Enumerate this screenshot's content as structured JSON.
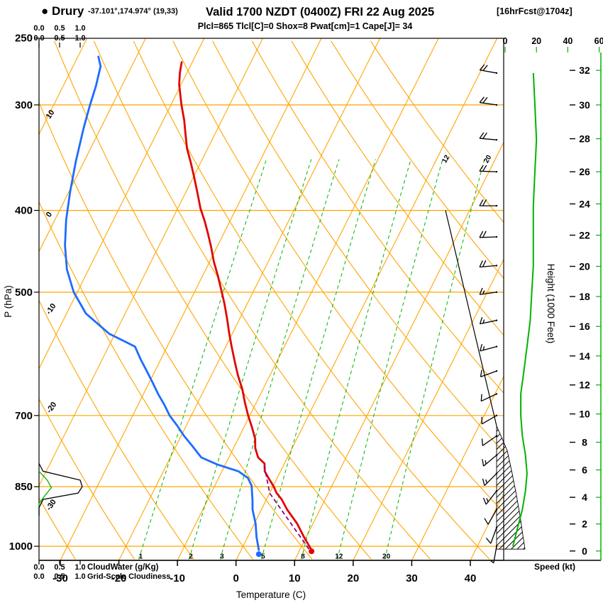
{
  "header": {
    "station_full": "● Drury",
    "coords": "-37.101°,174.974° (19,33)",
    "valid": "Valid 1700 NZDT (0400Z) FRI 22 Aug 2025",
    "fcst": "[16hrFcst@1704z]",
    "indices": "Plcl=865 Tlcl[C]=0 Shox=8 Pwat[cm]=1 Cape[J]= 34"
  },
  "axes": {
    "pressure": {
      "label": "P (hPa)",
      "ticks": [
        250,
        300,
        400,
        500,
        700,
        850,
        1000
      ]
    },
    "temperature": {
      "label": "Temperature (C)",
      "ticks": [
        -30,
        -20,
        -10,
        0,
        10,
        20,
        30,
        40
      ]
    },
    "height": {
      "label": "Height (1000 Feet)",
      "ticks": [
        32,
        30,
        28,
        26,
        24,
        22,
        20,
        18,
        16,
        14,
        12,
        10,
        8,
        6,
        4,
        2,
        0
      ]
    },
    "speed": {
      "label": "Speed (kt)",
      "ticks": [
        0,
        20,
        40,
        60
      ]
    },
    "cloudwater": {
      "label": "CloudWater (g/Kg)",
      "ticks": [
        "0.0",
        "0.5",
        "1.0"
      ]
    },
    "cloudiness": {
      "label": "Grid-Scale Cloudiness",
      "ticks": [
        "0.0",
        "0.5",
        "1.0"
      ]
    }
  },
  "grid": {
    "isotherms_c": [
      -70,
      -60,
      -50,
      -40,
      -30,
      -20,
      -10,
      0,
      10,
      20,
      30,
      40
    ],
    "dry_adiabats_c": [
      -40,
      -30,
      -20,
      -10,
      0,
      10,
      20,
      30,
      40,
      50,
      60,
      70,
      80,
      90,
      100
    ],
    "adiabat_left_labels": [
      10,
      0,
      -10,
      -20,
      -30
    ],
    "mixing_ratio_gkg": [
      1,
      2,
      3,
      5,
      8,
      12,
      20
    ],
    "mixing_top_labels": [
      12,
      20
    ]
  },
  "chart_data": {
    "type": "skewt_log_p_sounding",
    "title": "Drury forecast sounding valid 1700 NZDT FRI 22 Aug 2025",
    "pressure_range_hpa": [
      250,
      1040
    ],
    "temperature_range_c": [
      -30,
      40
    ],
    "temperature_c": [
      [
        1010,
        12
      ],
      [
        975,
        9.6
      ],
      [
        940,
        7.3
      ],
      [
        905,
        4.4
      ],
      [
        880,
        2.6
      ],
      [
        865,
        1.2
      ],
      [
        848,
        0
      ],
      [
        830,
        -1.5
      ],
      [
        815,
        -2.7
      ],
      [
        810,
        -2.9
      ],
      [
        798,
        -3.4
      ],
      [
        785,
        -5.0
      ],
      [
        765,
        -6.3
      ],
      [
        746,
        -7.1
      ],
      [
        722,
        -8.7
      ],
      [
        700,
        -10.3
      ],
      [
        675,
        -12
      ],
      [
        652,
        -13.5
      ],
      [
        627,
        -15.5
      ],
      [
        604,
        -17.2
      ],
      [
        580,
        -19
      ],
      [
        560,
        -20.5
      ],
      [
        537,
        -22.2
      ],
      [
        517,
        -23.8
      ],
      [
        497,
        -25.6
      ],
      [
        478,
        -27.4
      ],
      [
        460,
        -29.3
      ],
      [
        442,
        -31
      ],
      [
        426,
        -32.7
      ],
      [
        412,
        -34.3
      ],
      [
        398,
        -36.1
      ],
      [
        381,
        -38
      ],
      [
        365,
        -39.9
      ],
      [
        351,
        -41.7
      ],
      [
        338,
        -43.5
      ],
      [
        325,
        -45
      ],
      [
        313,
        -46.4
      ],
      [
        300,
        -48.2
      ],
      [
        284,
        -50.3
      ],
      [
        275,
        -51.2
      ],
      [
        267,
        -51.8
      ]
    ],
    "dewpoint_c": [
      [
        1010,
        3
      ],
      [
        975,
        1.5
      ],
      [
        940,
        0.2
      ],
      [
        905,
        -1.5
      ],
      [
        880,
        -2.4
      ],
      [
        865,
        -3
      ],
      [
        848,
        -3.7
      ],
      [
        830,
        -5
      ],
      [
        815,
        -7.2
      ],
      [
        800,
        -11.4
      ],
      [
        785,
        -14.7
      ],
      [
        760,
        -17.3
      ],
      [
        740,
        -19.5
      ],
      [
        720,
        -21.5
      ],
      [
        700,
        -23.7
      ],
      [
        680,
        -25.5
      ],
      [
        660,
        -27.5
      ],
      [
        640,
        -29.4
      ],
      [
        620,
        -31.4
      ],
      [
        600,
        -33.5
      ],
      [
        580,
        -35.5
      ],
      [
        560,
        -41
      ],
      [
        530,
        -46.7
      ],
      [
        500,
        -50.6
      ],
      [
        470,
        -53.7
      ],
      [
        440,
        -56.1
      ],
      [
        410,
        -58.1
      ],
      [
        380,
        -59.8
      ],
      [
        350,
        -61.4
      ],
      [
        320,
        -62.9
      ],
      [
        300,
        -63.8
      ],
      [
        285,
        -64.4
      ],
      [
        270,
        -65.3
      ],
      [
        263,
        -66.5
      ]
    ],
    "parcel_c": [
      [
        1008,
        11.5
      ],
      [
        865,
        0
      ],
      [
        800,
        -3.4
      ]
    ],
    "wind_p_kt_dir": [
      [
        275,
        18,
        280
      ],
      [
        300,
        19,
        278
      ],
      [
        330,
        20,
        275
      ],
      [
        360,
        19,
        272
      ],
      [
        395,
        18,
        270
      ],
      [
        430,
        18,
        268
      ],
      [
        465,
        18,
        265
      ],
      [
        500,
        17,
        262
      ],
      [
        540,
        16,
        258
      ],
      [
        580,
        14,
        255
      ],
      [
        620,
        12,
        250
      ],
      [
        660,
        10,
        245
      ],
      [
        700,
        10,
        240
      ],
      [
        740,
        11,
        235
      ],
      [
        780,
        13,
        230
      ],
      [
        820,
        14,
        225
      ],
      [
        860,
        13,
        218
      ],
      [
        905,
        11,
        210
      ],
      [
        950,
        8,
        200
      ],
      [
        1000,
        5,
        190
      ]
    ],
    "cloudiness_frac": [
      [
        920,
        0
      ],
      [
        900,
        0
      ],
      [
        880,
        0.1
      ],
      [
        865,
        0.95
      ],
      [
        850,
        1.05
      ],
      [
        835,
        1.0
      ],
      [
        815,
        0.1
      ],
      [
        798,
        0
      ]
    ],
    "cloudwater_gkg": [
      [
        900,
        0
      ],
      [
        890,
        0
      ],
      [
        870,
        0.15
      ],
      [
        852,
        0.3
      ],
      [
        835,
        0.2
      ],
      [
        815,
        0
      ]
    ],
    "cloud_column": {
      "boundary_p_x": [
        [
          400,
          628
        ],
        [
          720,
          700
        ]
      ],
      "hatch_right_p_x": [
        [
          720,
          700
        ],
        [
          770,
          715
        ],
        [
          820,
          722
        ],
        [
          870,
          728
        ],
        [
          920,
          733
        ],
        [
          970,
          737
        ],
        [
          1008,
          740
        ]
      ]
    }
  },
  "colors": {
    "orange": "#FFA500",
    "green_line": "#00B400",
    "green_text": "#009900",
    "red": "#E10600",
    "blue": "#1E6BFF",
    "purple": "#8B008B",
    "magenta": "#CC0066",
    "cloudwater_text": "#2060D0",
    "black": "#000000"
  }
}
